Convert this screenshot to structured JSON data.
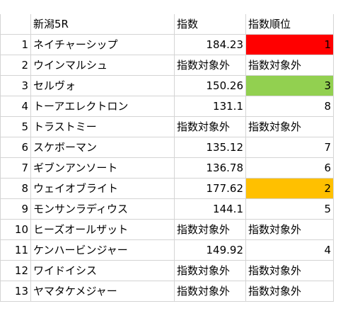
{
  "sheet": {
    "header": {
      "race": "新潟5R",
      "index": "指数",
      "rank": "指数順位"
    },
    "colors": {
      "rank1": "#ff0000",
      "rank2": "#ffc000",
      "rank3": "#92d050"
    },
    "rows": [
      {
        "num": "1",
        "name": "ネイチャーシップ",
        "index": "184.23",
        "rank": "1",
        "highlight": "rank1"
      },
      {
        "num": "2",
        "name": "ウインマルシュ",
        "index": "指数対象外",
        "rank": "指数対象外",
        "highlight": ""
      },
      {
        "num": "3",
        "name": "セルヴォ",
        "index": "150.26",
        "rank": "3",
        "highlight": "rank3"
      },
      {
        "num": "4",
        "name": "トーアエレクトロン",
        "index": "131.1",
        "rank": "8",
        "highlight": ""
      },
      {
        "num": "5",
        "name": "トラストミー",
        "index": "指数対象外",
        "rank": "指数対象外",
        "highlight": ""
      },
      {
        "num": "6",
        "name": "スケボーマン",
        "index": "135.12",
        "rank": "7",
        "highlight": ""
      },
      {
        "num": "7",
        "name": "ギブンアンソート",
        "index": "136.78",
        "rank": "6",
        "highlight": ""
      },
      {
        "num": "8",
        "name": "ウェイオブライト",
        "index": "177.62",
        "rank": "2",
        "highlight": "rank2"
      },
      {
        "num": "9",
        "name": "モンサンラディウス",
        "index": "144.1",
        "rank": "5",
        "highlight": ""
      },
      {
        "num": "10",
        "name": "ヒーズオールザット",
        "index": "指数対象外",
        "rank": "指数対象外",
        "highlight": ""
      },
      {
        "num": "11",
        "name": "ケンハービンジャー",
        "index": "149.92",
        "rank": "4",
        "highlight": ""
      },
      {
        "num": "12",
        "name": "ワイドイシス",
        "index": "指数対象外",
        "rank": "指数対象外",
        "highlight": ""
      },
      {
        "num": "13",
        "name": "ヤマタケメジャー",
        "index": "指数対象外",
        "rank": "指数対象外",
        "highlight": ""
      }
    ]
  }
}
